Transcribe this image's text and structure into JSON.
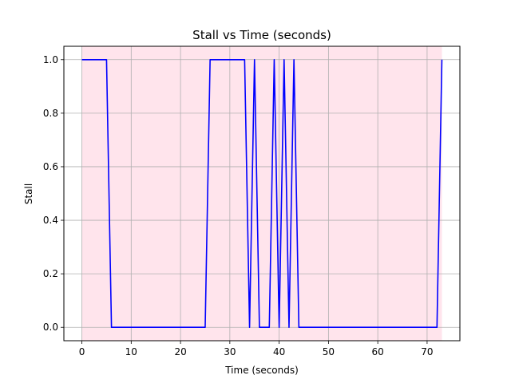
{
  "chart_data": {
    "type": "line",
    "title": "Stall vs Time (seconds)",
    "xlabel": "Time (seconds)",
    "ylabel": "Stall",
    "xlim": [
      -3.65,
      76.65
    ],
    "ylim": [
      -0.05,
      1.05
    ],
    "xticks": [
      0,
      10,
      20,
      30,
      40,
      50,
      60,
      70
    ],
    "yticks": [
      0.0,
      0.2,
      0.4,
      0.6,
      0.8,
      1.0
    ],
    "xtick_labels": [
      "0",
      "10",
      "20",
      "30",
      "40",
      "50",
      "60",
      "70"
    ],
    "ytick_labels": [
      "0.0",
      "0.2",
      "0.4",
      "0.6",
      "0.8",
      "1.0"
    ],
    "grid": true,
    "shaded_region": {
      "x": [
        0,
        73
      ],
      "color": "#ffe4ec"
    },
    "series": [
      {
        "color": "#0000ff",
        "x": [
          0,
          5,
          6,
          25,
          26,
          33,
          34,
          35,
          36,
          38,
          39,
          40,
          41,
          42,
          43,
          44,
          72,
          73
        ],
        "y": [
          1,
          1,
          0,
          0,
          1,
          1,
          0,
          1,
          0,
          0,
          1,
          0,
          1,
          0,
          1,
          0,
          0,
          1
        ]
      }
    ]
  }
}
